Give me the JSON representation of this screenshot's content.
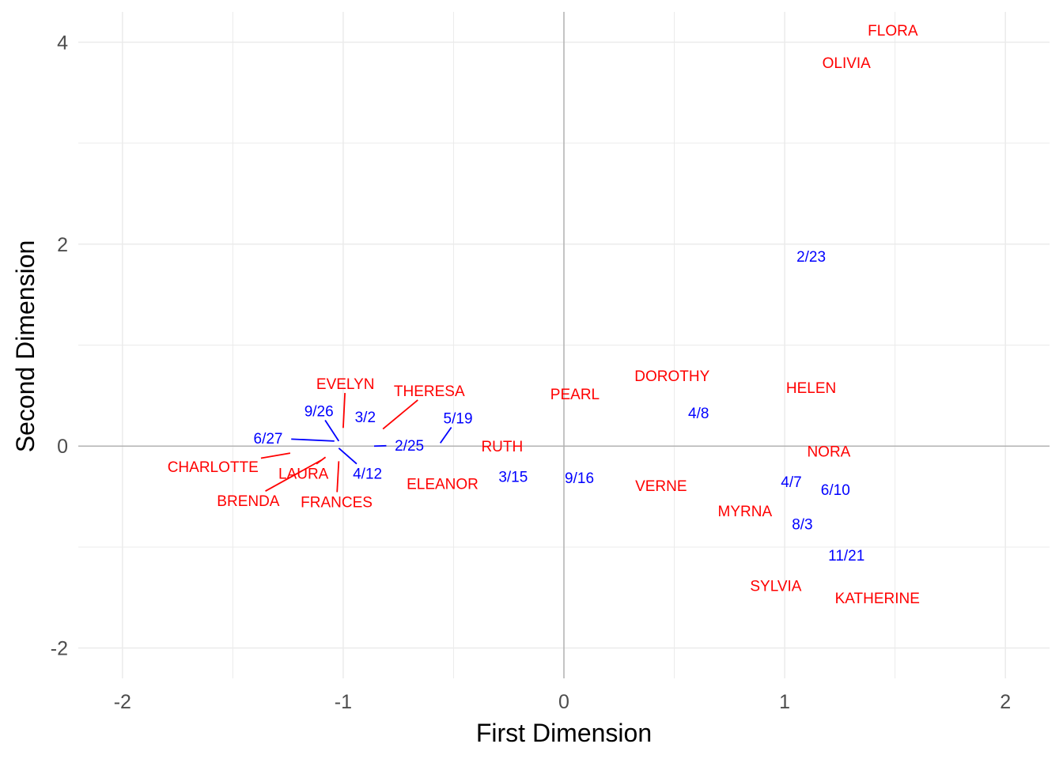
{
  "chart_data": {
    "type": "scatter",
    "title": "",
    "xlabel": "First Dimension",
    "ylabel": "Second Dimension",
    "xlim": [
      -2.2,
      2.2
    ],
    "ylim": [
      -2.3,
      4.3
    ],
    "x_ticks": [
      -2,
      -1,
      0,
      1,
      2
    ],
    "y_ticks": [
      -2,
      0,
      2,
      4
    ],
    "x_tick_labels": [
      "-2",
      "-1",
      "0",
      "1",
      "2"
    ],
    "y_tick_labels": [
      "-2",
      "0",
      "2",
      "4"
    ],
    "grid": true,
    "reference_lines": [
      0,
      0
    ],
    "colors": {
      "women": "#ff0000",
      "events": "#0000ff",
      "grid": "#ebebeb",
      "ref_line": "#b3b3b3"
    },
    "series": [
      {
        "kind": "women",
        "points": [
          {
            "label": "FLORA",
            "x": 1.49,
            "y": 4.12
          },
          {
            "label": "OLIVIA",
            "x": 1.28,
            "y": 3.8
          },
          {
            "label": "DOROTHY",
            "x": 0.49,
            "y": 0.7
          },
          {
            "label": "HELEN",
            "x": 1.12,
            "y": 0.58
          },
          {
            "label": "PEARL",
            "x": 0.05,
            "y": 0.52
          },
          {
            "label": "RUTH",
            "x": -0.28,
            "y": 0.0
          },
          {
            "label": "NORA",
            "x": 1.2,
            "y": -0.05
          },
          {
            "label": "ELEANOR",
            "x": -0.55,
            "y": -0.37
          },
          {
            "label": "VERNE",
            "x": 0.44,
            "y": -0.39
          },
          {
            "label": "MYRNA",
            "x": 0.82,
            "y": -0.64
          },
          {
            "label": "SYLVIA",
            "x": 0.96,
            "y": -1.38
          },
          {
            "label": "KATHERINE",
            "x": 1.42,
            "y": -1.5
          },
          {
            "label": "EVELYN",
            "x": -1.0,
            "y": 0.18,
            "label_x": -0.99,
            "label_y": 0.62
          },
          {
            "label": "THERESA",
            "x": -0.82,
            "y": 0.17,
            "label_x": -0.61,
            "label_y": 0.55
          },
          {
            "label": "CHARLOTTE",
            "x": -1.24,
            "y": -0.07,
            "label_x": -1.59,
            "label_y": -0.2
          },
          {
            "label": "LAURA",
            "x": -1.08,
            "y": -0.11,
            "label_x": -1.18,
            "label_y": -0.27
          },
          {
            "label": "BRENDA",
            "x": -1.1,
            "y": -0.14,
            "label_x": -1.43,
            "label_y": -0.54
          },
          {
            "label": "FRANCES",
            "x": -1.02,
            "y": -0.15,
            "label_x": -1.03,
            "label_y": -0.55
          }
        ]
      },
      {
        "kind": "events",
        "points": [
          {
            "label": "2/23",
            "x": 1.12,
            "y": 1.88
          },
          {
            "label": "4/8",
            "x": 0.61,
            "y": 0.33
          },
          {
            "label": "3/15",
            "x": -0.23,
            "y": -0.3
          },
          {
            "label": "9/16",
            "x": 0.07,
            "y": -0.31
          },
          {
            "label": "4/7",
            "x": 1.03,
            "y": -0.35
          },
          {
            "label": "6/10",
            "x": 1.23,
            "y": -0.43
          },
          {
            "label": "8/3",
            "x": 1.08,
            "y": -0.77
          },
          {
            "label": "11/21",
            "x": 1.28,
            "y": -1.08
          },
          {
            "label": "9/26",
            "x": -1.02,
            "y": 0.05,
            "label_x": -1.11,
            "label_y": 0.35
          },
          {
            "label": "3/2",
            "x": -0.97,
            "y": 0.22,
            "label_x": -0.9,
            "label_y": 0.29
          },
          {
            "label": "5/19",
            "x": -0.56,
            "y": 0.03,
            "label_x": -0.48,
            "label_y": 0.28
          },
          {
            "label": "6/27",
            "x": -1.04,
            "y": 0.05,
            "label_x": -1.34,
            "label_y": 0.08
          },
          {
            "label": "2/25",
            "x": -0.86,
            "y": 0.0,
            "label_x": -0.7,
            "label_y": 0.01
          },
          {
            "label": "4/12",
            "x": -1.02,
            "y": -0.02,
            "label_x": -0.89,
            "label_y": -0.27
          }
        ]
      }
    ]
  }
}
